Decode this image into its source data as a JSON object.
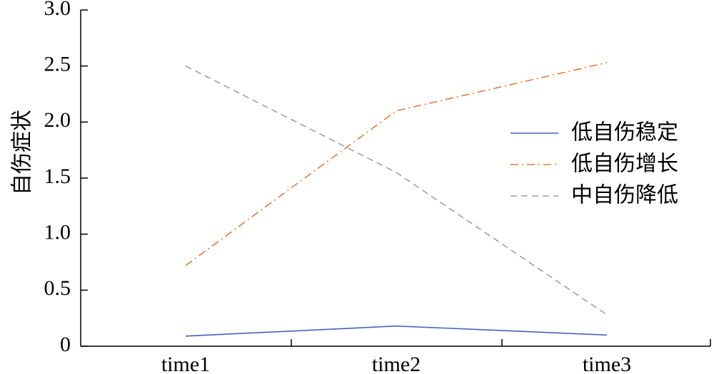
{
  "chart_data": {
    "type": "line",
    "title": "",
    "xlabel": "",
    "ylabel": "自伤症状",
    "categories": [
      "time1",
      "time2",
      "time3"
    ],
    "ylim": [
      0,
      3.0
    ],
    "yticks": [
      "0",
      "0.5",
      "1.0",
      "1.5",
      "2.0",
      "2.5",
      "3.0"
    ],
    "grid": false,
    "legend_position": "right",
    "series": [
      {
        "name": "低自伤稳定",
        "values": [
          0.09,
          0.18,
          0.1
        ],
        "color": "#4a5fbf",
        "dash": "solid"
      },
      {
        "name": "低自伤增长",
        "values": [
          0.72,
          2.1,
          2.53
        ],
        "color": "#e07b39",
        "dash": "dashdot"
      },
      {
        "name": "中自伤降低",
        "values": [
          2.5,
          1.55,
          0.28
        ],
        "color": "#a0a0a0",
        "dash": "dashed"
      }
    ]
  }
}
